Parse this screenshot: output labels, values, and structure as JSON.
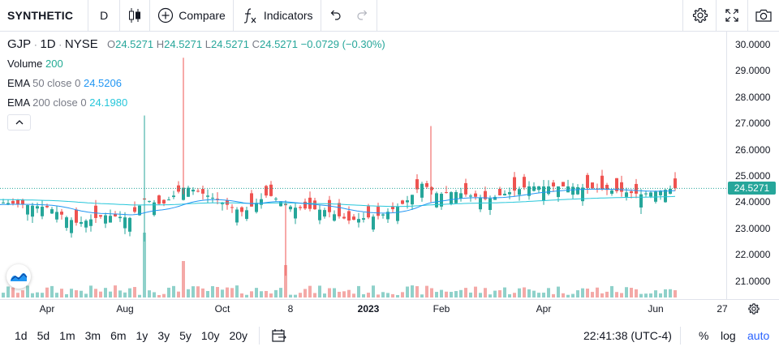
{
  "toolbar": {
    "symbol": "SYNTHETIC",
    "interval": "D",
    "compare_label": "Compare",
    "indicators_label": "Indicators"
  },
  "legend": {
    "symbol": "GJP",
    "interval": "1D",
    "exchange": "NYSE",
    "sep": "·",
    "o_label": "O",
    "o_value": "24.5271",
    "h_label": "H",
    "h_value": "24.5271",
    "l_label": "L",
    "l_value": "24.5271",
    "c_label": "C",
    "c_value": "24.5271",
    "change": "−0.0729 (−0.30%)",
    "volume_label": "Volume",
    "volume_value": "200",
    "ema50_label": "EMA",
    "ema50_params": "50 close 0",
    "ema50_value": "24.5206",
    "ema200_label": "EMA",
    "ema200_params": "200 close 0",
    "ema200_value": "24.1980"
  },
  "price_axis": {
    "labels": [
      "30.0000",
      "29.0000",
      "28.0000",
      "27.0000",
      "26.0000",
      "25.0000",
      "24.0000",
      "23.0000",
      "22.0000",
      "21.0000"
    ],
    "current_price": "24.5271"
  },
  "time_axis": {
    "labels": [
      "Apr",
      "Aug",
      "Oct",
      "8",
      "2023",
      "Feb",
      "Apr",
      "Jun",
      "27"
    ]
  },
  "bottom": {
    "ranges": [
      "1d",
      "5d",
      "1m",
      "3m",
      "6m",
      "1y",
      "3y",
      "5y",
      "10y",
      "20y"
    ],
    "clock": "22:41:38 (UTC-4)",
    "percent_label": "%",
    "log_label": "log",
    "auto_label": "auto"
  },
  "colors": {
    "up": "#26a69a",
    "down": "#ef5350",
    "ema50": "#2196f3",
    "ema200": "#26c6da",
    "accent": "#2962ff"
  },
  "icons": {
    "candles": "candlestick-icon",
    "compare": "plus-circle-icon",
    "indicators": "fx-icon",
    "undo": "undo-icon",
    "redo": "redo-icon",
    "settings": "gear-icon",
    "fullscreen": "fullscreen-icon",
    "snapshot": "camera-icon",
    "collapse": "chevron-up-icon",
    "axis_settings": "gear-icon",
    "date_range": "calendar-range-icon",
    "logo": "tradingview-logo-icon"
  }
}
